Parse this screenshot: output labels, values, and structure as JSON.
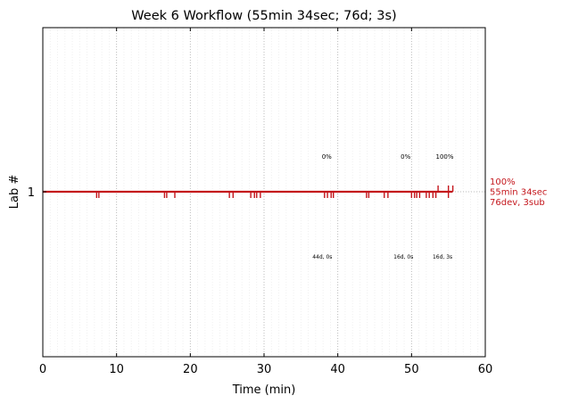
{
  "chart_data": {
    "type": "line",
    "title": "Week 6 Workflow (55min 34sec; 76d; 3s)",
    "xlabel": "Time (min)",
    "ylabel": "Lab #",
    "xlim": [
      0,
      60
    ],
    "xticks": [
      0,
      10,
      20,
      30,
      40,
      50,
      60
    ],
    "yticks": [
      {
        "value": 1,
        "label": "1"
      }
    ],
    "grid": {
      "major_x": true,
      "minor_x": true,
      "y_reference_line": true
    },
    "series": [
      {
        "lab": 1,
        "start_min": 0,
        "end_min": 55.57,
        "color": "#c4161c",
        "down_ticks_min": [
          7.3,
          7.6,
          16.5,
          16.8,
          17.9,
          25.3,
          25.8,
          28.2,
          28.7,
          29.0,
          29.5,
          38.2,
          38.6,
          39.1,
          39.4,
          43.9,
          44.2,
          46.3,
          46.8,
          50.0,
          50.4,
          50.7,
          51.1,
          52.0,
          52.4,
          52.9,
          53.3,
          55.0
        ],
        "up_ticks_min": [
          53.6,
          55.0,
          55.6
        ]
      }
    ],
    "annotations": {
      "percent_labels": [
        {
          "x_min": 38.5,
          "text": "0%"
        },
        {
          "x_min": 49.2,
          "text": "0%"
        },
        {
          "x_min": 54.5,
          "text": "100%"
        }
      ],
      "count_labels": [
        {
          "x_min": 37.9,
          "text": "44d, 0s"
        },
        {
          "x_min": 48.9,
          "text": "16d, 0s"
        },
        {
          "x_min": 54.2,
          "text": "16d, 3s"
        }
      ],
      "end_summary": [
        "100%",
        "55min 34sec",
        "76dev, 3sub"
      ]
    }
  }
}
